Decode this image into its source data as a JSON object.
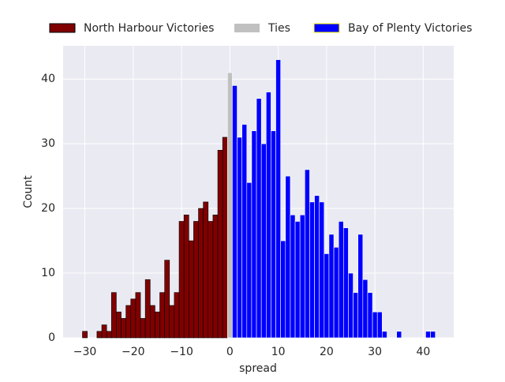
{
  "chart_data": {
    "type": "histogram",
    "xlabel": "spread",
    "ylabel": "Count",
    "xlim": [
      -34.5,
      46.3
    ],
    "ylim": [
      0,
      45.15
    ],
    "xticks": [
      {
        "value": -30,
        "label": "−30"
      },
      {
        "value": -20,
        "label": "−20"
      },
      {
        "value": -10,
        "label": "−10"
      },
      0,
      10,
      20,
      30,
      40
    ],
    "yticks": [
      0,
      10,
      20,
      30,
      40
    ],
    "grid": true,
    "legend": "upper center",
    "series": [
      {
        "name": "North Harbour Victories",
        "color": "#800000",
        "edgecolor": "#000000",
        "bins": [
          -30.5,
          -29.5,
          -28.5,
          -27.5,
          -26.5,
          -25.5,
          -24.5,
          -23.5,
          -22.5,
          -21.5,
          -20.5,
          -19.5,
          -18.5,
          -17.5,
          -16.5,
          -15.5,
          -14.5,
          -13.5,
          -12.5,
          -11.5,
          -10.5,
          -9.5,
          -8.5,
          -7.5,
          -6.5,
          -5.5,
          -4.5,
          -3.5,
          -2.5,
          -1.5,
          -0.5
        ],
        "values": [
          1,
          0,
          0,
          1,
          2,
          1,
          7,
          4,
          3,
          5,
          6,
          7,
          3,
          9,
          5,
          4,
          7,
          12,
          5,
          7,
          18,
          19,
          15,
          18,
          20,
          21,
          18,
          19,
          29,
          31
        ]
      },
      {
        "name": "Ties",
        "color": "#c0c0c0",
        "bins": [
          -0.5,
          0.5
        ],
        "values": [
          41
        ]
      },
      {
        "name": "Bay of Plenty Victories",
        "color": "#0000ff",
        "edgecolor": "#ffff00",
        "bins": [
          0.5,
          1.5,
          2.5,
          3.5,
          4.5,
          5.5,
          6.5,
          7.5,
          8.5,
          9.5,
          10.5,
          11.5,
          12.5,
          13.5,
          14.5,
          15.5,
          16.5,
          17.5,
          18.5,
          19.5,
          20.5,
          21.5,
          22.5,
          23.5,
          24.5,
          25.5,
          26.5,
          27.5,
          28.5,
          29.5,
          30.5,
          31.5,
          32.5,
          33.5,
          34.5,
          35.5,
          36.5,
          37.5,
          38.5,
          39.5,
          40.5,
          41.5,
          42.5
        ],
        "values": [
          39,
          31,
          33,
          24,
          32,
          37,
          30,
          38,
          32,
          43,
          15,
          25,
          19,
          18,
          19,
          26,
          21,
          22,
          21,
          13,
          16,
          14,
          18,
          17,
          10,
          7,
          16,
          9,
          7,
          4,
          4,
          1,
          0,
          0,
          1,
          0,
          0,
          0,
          0,
          0,
          1,
          1
        ]
      }
    ]
  }
}
